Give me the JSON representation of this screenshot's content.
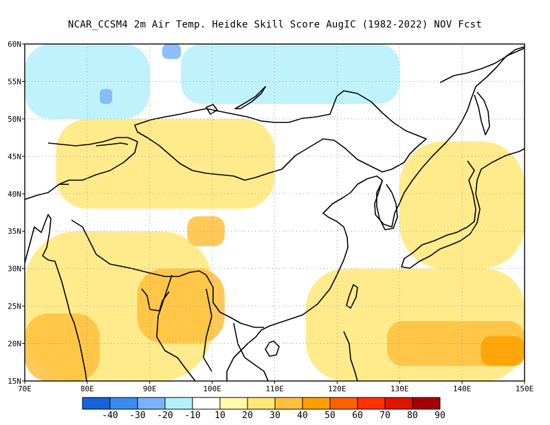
{
  "title": "NCAR_CCSM4  2m Air Temp. Heidke Skill Score AugIC (1982-2022) NOV Fcst",
  "map": {
    "lon_range": [
      70,
      150
    ],
    "lat_range": [
      15,
      60
    ],
    "lon_ticks": [
      "70E",
      "80E",
      "90E",
      "100E",
      "110E",
      "120E",
      "130E",
      "140E",
      "150E"
    ],
    "lat_ticks": [
      "15N",
      "20N",
      "25N",
      "30N",
      "35N",
      "40N",
      "45N",
      "50N",
      "55N",
      "60N"
    ],
    "grid": "dotted"
  },
  "colorbar": {
    "labels": [
      "-40",
      "-30",
      "-20",
      "-10",
      "10",
      "20",
      "30",
      "40",
      "50",
      "60",
      "70",
      "80",
      "90"
    ],
    "colors": [
      "#1464dc",
      "#3c8cf0",
      "#78b4fa",
      "#b4f0fa",
      "#ffffff",
      "#fffaaa",
      "#ffe878",
      "#ffc03c",
      "#ffa000",
      "#ff6000",
      "#ff3200",
      "#e11400",
      "#a50000"
    ]
  },
  "chart_data": {
    "type": "heatmap",
    "title": "NCAR_CCSM4  2m Air Temp. Heidke Skill Score AugIC (1982-2022) NOV Fcst",
    "x_range": [
      70,
      150
    ],
    "y_range": [
      15,
      60
    ],
    "regions": [
      {
        "lon": [
          70,
          150
        ],
        "lat": [
          15,
          60
        ],
        "score": 10
      },
      {
        "lon": [
          75,
          110
        ],
        "lat": [
          38,
          50
        ],
        "score": 20
      },
      {
        "lon": [
          70,
          100
        ],
        "lat": [
          15,
          35
        ],
        "score": 20
      },
      {
        "lon": [
          115,
          150
        ],
        "lat": [
          15,
          30
        ],
        "score": 20
      },
      {
        "lon": [
          130,
          150
        ],
        "lat": [
          30,
          47
        ],
        "score": 20
      },
      {
        "lon": [
          88,
          102
        ],
        "lat": [
          20,
          30
        ],
        "score": 30
      },
      {
        "lon": [
          96,
          102
        ],
        "lat": [
          33,
          37
        ],
        "score": 30
      },
      {
        "lon": [
          128,
          150
        ],
        "lat": [
          17,
          23
        ],
        "score": 30
      },
      {
        "lon": [
          70,
          82
        ],
        "lat": [
          15,
          24
        ],
        "score": 30
      },
      {
        "lon": [
          143,
          150
        ],
        "lat": [
          17,
          21
        ],
        "score": 40
      },
      {
        "lon": [
          70,
          90
        ],
        "lat": [
          50,
          60
        ],
        "score": -10
      },
      {
        "lon": [
          95,
          130
        ],
        "lat": [
          52,
          60
        ],
        "score": -10
      },
      {
        "lon": [
          82,
          84
        ],
        "lat": [
          52,
          54
        ],
        "score": -20
      },
      {
        "lon": [
          92,
          95
        ],
        "lat": [
          58,
          60
        ],
        "score": -20
      }
    ]
  }
}
